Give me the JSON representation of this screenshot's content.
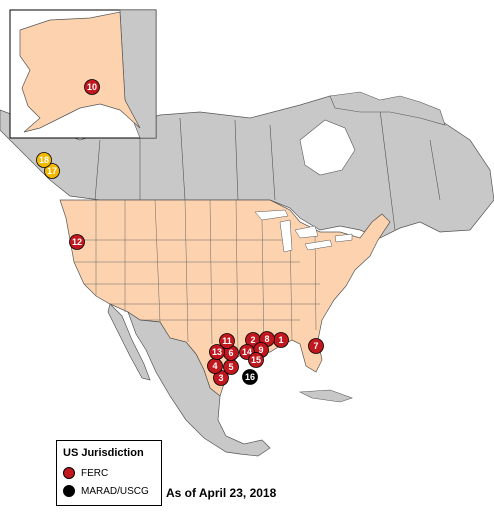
{
  "legend": {
    "title": "US Jurisdiction",
    "items": [
      {
        "label": "FERC",
        "color": "#c0181e"
      },
      {
        "label": "MARAD/USCG",
        "color": "#000000"
      }
    ]
  },
  "as_of": "As of April 23, 2018",
  "colors": {
    "us": "#fcd3ae",
    "other": "#c8c8c8",
    "border": "#555555",
    "ferc": "#c0181e",
    "marad": "#000000",
    "yellow": "#f5b800"
  },
  "markers": [
    {
      "id": "1",
      "label": "1",
      "type": "ferc"
    },
    {
      "id": "2",
      "label": "2",
      "type": "ferc"
    },
    {
      "id": "3",
      "label": "3",
      "type": "ferc"
    },
    {
      "id": "4",
      "label": "4",
      "type": "ferc"
    },
    {
      "id": "5",
      "label": "5",
      "type": "ferc"
    },
    {
      "id": "6",
      "label": "6",
      "type": "ferc"
    },
    {
      "id": "7",
      "label": "7",
      "type": "ferc"
    },
    {
      "id": "8",
      "label": "8",
      "type": "ferc"
    },
    {
      "id": "9",
      "label": "9",
      "type": "ferc"
    },
    {
      "id": "10",
      "label": "10",
      "type": "ferc"
    },
    {
      "id": "11",
      "label": "11",
      "type": "ferc"
    },
    {
      "id": "12",
      "label": "12",
      "type": "ferc"
    },
    {
      "id": "13",
      "label": "13",
      "type": "ferc"
    },
    {
      "id": "14",
      "label": "14",
      "type": "ferc"
    },
    {
      "id": "15",
      "label": "15",
      "type": "ferc"
    },
    {
      "id": "16",
      "label": "16",
      "type": "marad"
    },
    {
      "id": "17",
      "label": "17",
      "type": "yellow"
    },
    {
      "id": "18",
      "label": "18",
      "type": "yellow"
    }
  ]
}
